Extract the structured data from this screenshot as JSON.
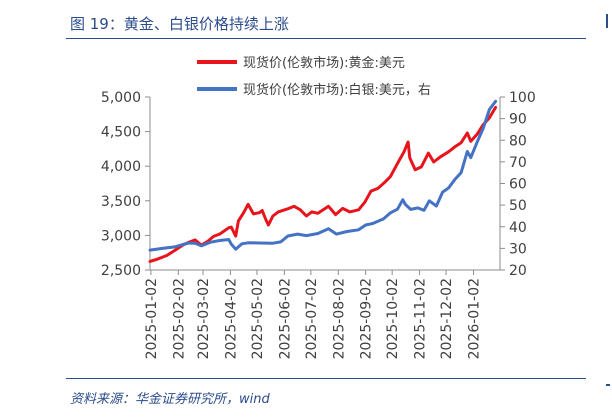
{
  "title": "图 19：黄金、白银价格持续上涨",
  "source": "资料来源：华金证券研究所，wind",
  "chart_data": {
    "type": "line",
    "x_labels": [
      "2025-01-02",
      "2025-02-02",
      "2025-03-02",
      "2025-04-02",
      "2025-05-02",
      "2025-06-02",
      "2025-07-02",
      "2025-08-02",
      "2025-09-02",
      "2025-10-02",
      "2025-11-02",
      "2025-12-02",
      "2026-01-02"
    ],
    "xlim": [
      "2025-01-01",
      "2026-02-01"
    ],
    "y_left": {
      "ylim": [
        2500,
        5000
      ],
      "ticks": [
        "2,500",
        "3,000",
        "3,500",
        "4,000",
        "4,500",
        "5,000"
      ]
    },
    "y_right": {
      "ylim": [
        20,
        100
      ],
      "ticks": [
        "20",
        "30",
        "40",
        "50",
        "60",
        "70",
        "80",
        "90",
        "100"
      ]
    },
    "grid": false,
    "legend_position": "top",
    "series": [
      {
        "name": "现货价(伦敦市场):黄金:美元",
        "axis": "left",
        "color": "#e8141c",
        "points": [
          [
            "2025-01-01",
            2625
          ],
          [
            "2025-01-10",
            2660
          ],
          [
            "2025-01-20",
            2710
          ],
          [
            "2025-01-30",
            2790
          ],
          [
            "2025-02-07",
            2860
          ],
          [
            "2025-02-14",
            2900
          ],
          [
            "2025-02-21",
            2935
          ],
          [
            "2025-02-28",
            2860
          ],
          [
            "2025-03-07",
            2910
          ],
          [
            "2025-03-14",
            2985
          ],
          [
            "2025-03-21",
            3020
          ],
          [
            "2025-03-31",
            3110
          ],
          [
            "2025-04-03",
            3120
          ],
          [
            "2025-04-08",
            2990
          ],
          [
            "2025-04-11",
            3210
          ],
          [
            "2025-04-17",
            3330
          ],
          [
            "2025-04-22",
            3450
          ],
          [
            "2025-04-28",
            3310
          ],
          [
            "2025-05-05",
            3330
          ],
          [
            "2025-05-08",
            3360
          ],
          [
            "2025-05-12",
            3230
          ],
          [
            "2025-05-15",
            3150
          ],
          [
            "2025-05-20",
            3280
          ],
          [
            "2025-05-26",
            3340
          ],
          [
            "2025-06-05",
            3380
          ],
          [
            "2025-06-13",
            3420
          ],
          [
            "2025-06-20",
            3370
          ],
          [
            "2025-06-27",
            3280
          ],
          [
            "2025-07-03",
            3340
          ],
          [
            "2025-07-10",
            3320
          ],
          [
            "2025-07-22",
            3420
          ],
          [
            "2025-07-30",
            3300
          ],
          [
            "2025-08-07",
            3390
          ],
          [
            "2025-08-15",
            3340
          ],
          [
            "2025-08-25",
            3370
          ],
          [
            "2025-09-01",
            3480
          ],
          [
            "2025-09-08",
            3640
          ],
          [
            "2025-09-16",
            3680
          ],
          [
            "2025-09-23",
            3760
          ],
          [
            "2025-09-30",
            3850
          ],
          [
            "2025-10-08",
            4040
          ],
          [
            "2025-10-15",
            4200
          ],
          [
            "2025-10-20",
            4350
          ],
          [
            "2025-10-22",
            4120
          ],
          [
            "2025-10-28",
            3950
          ],
          [
            "2025-11-04",
            3990
          ],
          [
            "2025-11-12",
            4190
          ],
          [
            "2025-11-18",
            4060
          ],
          [
            "2025-11-25",
            4130
          ],
          [
            "2025-12-05",
            4210
          ],
          [
            "2025-12-12",
            4280
          ],
          [
            "2025-12-19",
            4340
          ],
          [
            "2025-12-26",
            4480
          ],
          [
            "2025-12-30",
            4360
          ],
          [
            "2026-01-06",
            4460
          ],
          [
            "2026-01-13",
            4600
          ],
          [
            "2026-01-20",
            4700
          ],
          [
            "2026-01-27",
            4850
          ]
        ]
      },
      {
        "name": "现货价(伦敦市场):白银:美元，右",
        "axis": "right",
        "color": "#4472c4",
        "points": [
          [
            "2025-01-01",
            29.2
          ],
          [
            "2025-01-15",
            30.0
          ],
          [
            "2025-01-29",
            30.7
          ],
          [
            "2025-02-07",
            31.8
          ],
          [
            "2025-02-14",
            32.5
          ],
          [
            "2025-02-21",
            32.4
          ],
          [
            "2025-02-28",
            31.2
          ],
          [
            "2025-03-10",
            32.8
          ],
          [
            "2025-03-20",
            33.6
          ],
          [
            "2025-03-31",
            34.1
          ],
          [
            "2025-04-03",
            32.0
          ],
          [
            "2025-04-08",
            29.6
          ],
          [
            "2025-04-15",
            32.1
          ],
          [
            "2025-04-22",
            32.6
          ],
          [
            "2025-05-05",
            32.5
          ],
          [
            "2025-05-20",
            32.4
          ],
          [
            "2025-05-29",
            33.0
          ],
          [
            "2025-06-06",
            35.7
          ],
          [
            "2025-06-17",
            36.6
          ],
          [
            "2025-06-27",
            35.9
          ],
          [
            "2025-07-10",
            36.9
          ],
          [
            "2025-07-22",
            39.1
          ],
          [
            "2025-07-31",
            36.6
          ],
          [
            "2025-08-12",
            37.8
          ],
          [
            "2025-08-25",
            38.6
          ],
          [
            "2025-09-02",
            40.8
          ],
          [
            "2025-09-10",
            41.5
          ],
          [
            "2025-09-22",
            43.6
          ],
          [
            "2025-09-30",
            46.4
          ],
          [
            "2025-10-08",
            48.1
          ],
          [
            "2025-10-14",
            52.5
          ],
          [
            "2025-10-17",
            50.3
          ],
          [
            "2025-10-23",
            48.0
          ],
          [
            "2025-10-31",
            48.7
          ],
          [
            "2025-11-07",
            47.6
          ],
          [
            "2025-11-13",
            52.0
          ],
          [
            "2025-11-21",
            49.6
          ],
          [
            "2025-11-28",
            56.0
          ],
          [
            "2025-12-05",
            58.0
          ],
          [
            "2025-12-12",
            61.9
          ],
          [
            "2025-12-19",
            65.0
          ],
          [
            "2025-12-26",
            74.8
          ],
          [
            "2025-12-30",
            72.0
          ],
          [
            "2026-01-06",
            79.0
          ],
          [
            "2026-01-13",
            85.5
          ],
          [
            "2026-01-20",
            94.2
          ],
          [
            "2026-01-27",
            98.0
          ]
        ]
      }
    ]
  }
}
